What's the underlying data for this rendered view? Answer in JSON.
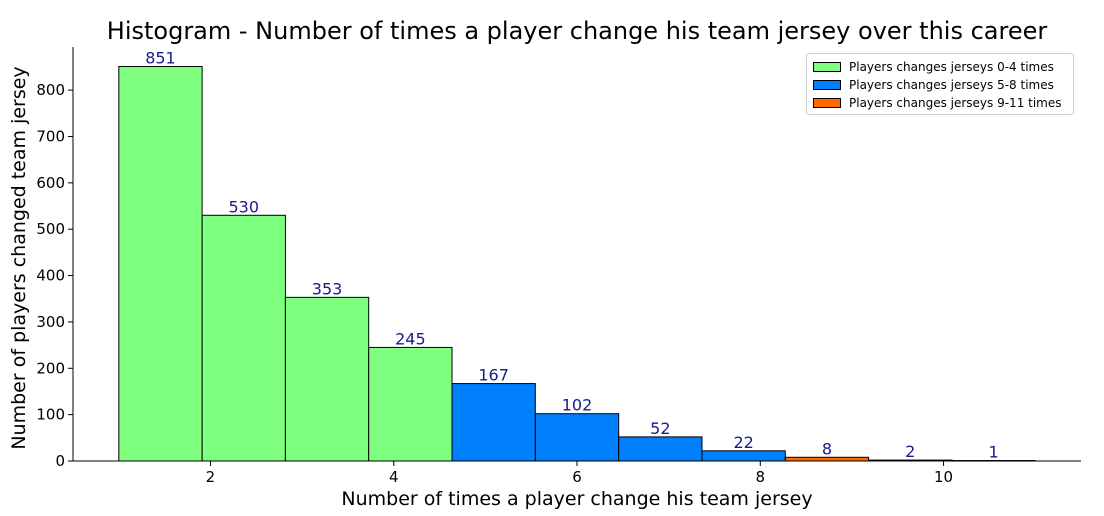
{
  "chart_data": {
    "type": "bar",
    "title": "Histogram - Number of times a player change his team jersey over this career",
    "xlabel": "Number of times a player change his team jersey",
    "ylabel": "Number of players changed team jersey",
    "x_ticks": [
      2,
      4,
      6,
      8,
      10
    ],
    "y_ticks": [
      0,
      100,
      200,
      300,
      400,
      500,
      600,
      700,
      800
    ],
    "xlim": [
      0.5,
      11.5
    ],
    "ylim": [
      0,
      893
    ],
    "bins": [
      {
        "x0": 1.0,
        "x1": 1.909,
        "value": 851,
        "label": "851",
        "group": 0
      },
      {
        "x0": 1.909,
        "x1": 2.818,
        "value": 530,
        "label": "530",
        "group": 0
      },
      {
        "x0": 2.818,
        "x1": 3.727,
        "value": 353,
        "label": "353",
        "group": 0
      },
      {
        "x0": 3.727,
        "x1": 4.636,
        "value": 245,
        "label": "245",
        "group": 0
      },
      {
        "x0": 4.636,
        "x1": 5.545,
        "value": 167,
        "label": "167",
        "group": 1
      },
      {
        "x0": 5.545,
        "x1": 6.455,
        "value": 102,
        "label": "102",
        "group": 1
      },
      {
        "x0": 6.455,
        "x1": 7.364,
        "value": 52,
        "label": "52",
        "group": 1
      },
      {
        "x0": 7.364,
        "x1": 8.273,
        "value": 22,
        "label": "22",
        "group": 1
      },
      {
        "x0": 8.273,
        "x1": 9.182,
        "value": 8,
        "label": "8",
        "group": 2
      },
      {
        "x0": 9.182,
        "x1": 10.091,
        "value": 2,
        "label": "2",
        "group": 2
      },
      {
        "x0": 10.091,
        "x1": 11.0,
        "value": 1,
        "label": "1",
        "group": 2
      }
    ],
    "legend": {
      "position": "top-right",
      "entries": [
        {
          "label": "Players changes jerseys 0-4 times",
          "color": "#7fff7f"
        },
        {
          "label": "Players changes jerseys 5-8 times",
          "color": "#0080ff"
        },
        {
          "label": "Players changes jerseys 9-11 times",
          "color": "#ff6a00"
        }
      ]
    },
    "grid": false
  }
}
